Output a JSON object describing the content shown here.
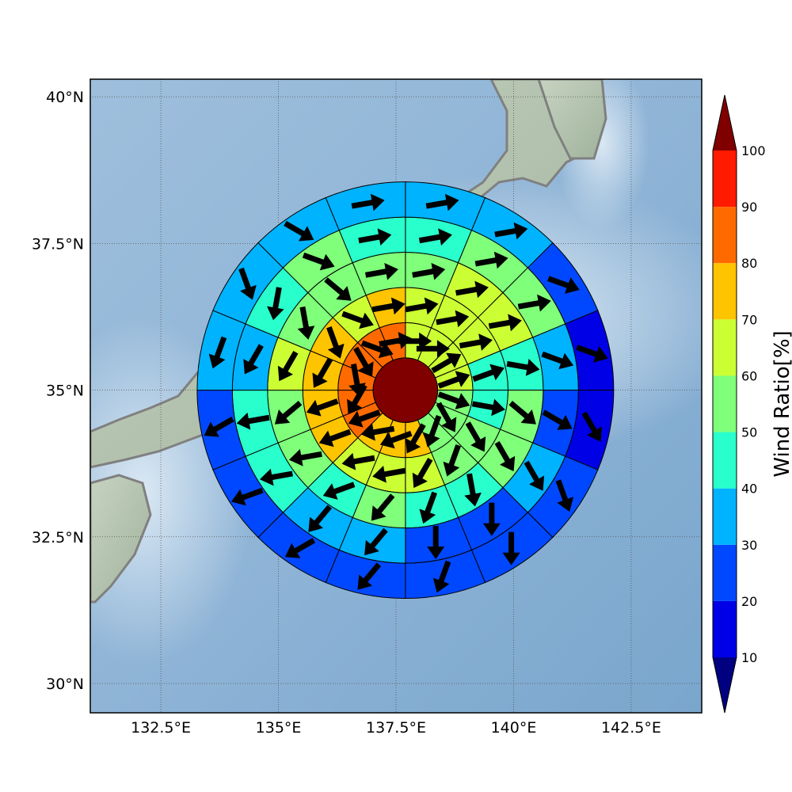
{
  "chart_data": {
    "type": "heatmap",
    "subtype": "polar-sector-map-with-wind-vectors",
    "title": "",
    "map": {
      "lon_range": [
        131.0,
        144.0
      ],
      "lat_range": [
        29.5,
        40.3
      ],
      "xticks": [
        "132.5°E",
        "135°E",
        "137.5°E",
        "140°E",
        "142.5°E"
      ],
      "xtick_values": [
        132.5,
        135.0,
        137.5,
        140.0,
        142.5
      ],
      "yticks": [
        "40°N",
        "37.5°N",
        "35°N",
        "32.5°N",
        "30°N"
      ],
      "ytick_values": [
        40.0,
        37.5,
        35.0,
        32.5,
        30.0
      ],
      "grid": "dotted",
      "center": {
        "lon": 137.7,
        "lat": 35.0
      },
      "background": "shaded-relief basemap with grey coastlines"
    },
    "colorbar": {
      "label": "Wind Ratio[%]",
      "ticks": [
        10,
        20,
        30,
        40,
        50,
        60,
        70,
        80,
        90,
        100
      ],
      "extend": "both",
      "placement": "right"
    },
    "ring_sectors": [
      16,
      16,
      16,
      16,
      16
    ],
    "center_value": 100,
    "rings": [
      [
        60,
        60,
        60,
        60,
        50,
        50,
        50,
        70,
        70,
        70,
        80,
        80,
        80,
        80,
        80,
        80
      ],
      [
        60,
        60,
        60,
        40,
        40,
        50,
        50,
        60,
        60,
        60,
        70,
        70,
        70,
        70,
        60,
        70
      ],
      [
        50,
        60,
        60,
        40,
        50,
        50,
        40,
        40,
        50,
        40,
        50,
        50,
        60,
        50,
        50,
        50
      ],
      [
        40,
        50,
        50,
        30,
        20,
        30,
        20,
        20,
        30,
        30,
        40,
        40,
        30,
        40,
        50,
        40
      ],
      [
        30,
        30,
        20,
        10,
        10,
        20,
        20,
        20,
        20,
        20,
        20,
        20,
        30,
        30,
        30,
        30
      ]
    ],
    "arrows": [
      [
        0,
        0,
        30,
        20,
        -20,
        -60,
        -110,
        -120,
        -160,
        -170,
        -160,
        -120,
        -80,
        -60,
        -20,
        10
      ],
      [
        10,
        10,
        10,
        20,
        -10,
        -60,
        -110,
        -120,
        -170,
        -170,
        -160,
        -160,
        -120,
        -70,
        -20,
        10
      ],
      [
        10,
        10,
        10,
        -10,
        -40,
        -60,
        -80,
        -110,
        -130,
        -160,
        -170,
        -140,
        -120,
        -80,
        -40,
        10
      ],
      [
        10,
        10,
        10,
        -20,
        -30,
        -60,
        -90,
        -90,
        -130,
        -130,
        -170,
        -170,
        -120,
        -100,
        -20,
        10
      ],
      [
        10,
        10,
        -20,
        -20,
        -60,
        -70,
        -90,
        -110,
        -130,
        -150,
        -160,
        -150,
        -110,
        -70,
        -30,
        10
      ]
    ],
    "radii_deg_lat": [
      0.55,
      1.15,
      1.75,
      2.35,
      2.95,
      3.55
    ]
  }
}
